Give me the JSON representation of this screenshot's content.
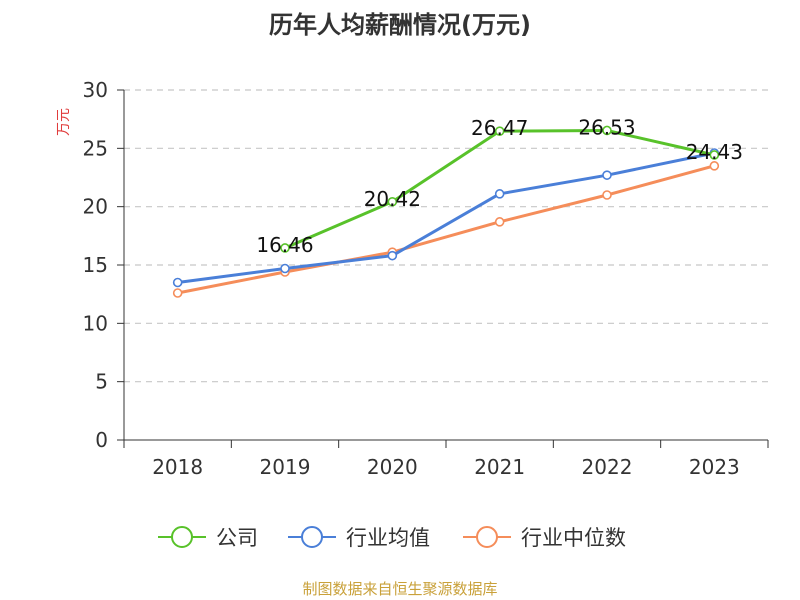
{
  "chart_data": {
    "type": "line",
    "title": "历年人均薪酬情况(万元)",
    "ylabel": "万元",
    "xlabel": "",
    "categories": [
      "2018",
      "2019",
      "2020",
      "2021",
      "2022",
      "2023"
    ],
    "ylim": [
      0,
      30
    ],
    "yticks": [
      0,
      5,
      10,
      15,
      20,
      25,
      30
    ],
    "grid": "horizontal-dashed",
    "legend_position": "bottom",
    "series": [
      {
        "name": "公司",
        "color": "#58c22a",
        "values": [
          null,
          16.46,
          20.42,
          26.47,
          26.53,
          24.43
        ],
        "labels": [
          "",
          "16.46",
          "20.42",
          "26.47",
          "26.53",
          "24.43"
        ]
      },
      {
        "name": "行业均值",
        "color": "#4a7fd8",
        "values": [
          13.5,
          14.7,
          15.8,
          21.1,
          22.7,
          24.6
        ],
        "labels": [
          "",
          "",
          "",
          "",
          "",
          ""
        ]
      },
      {
        "name": "行业中位数",
        "color": "#f58d5a",
        "values": [
          12.6,
          14.4,
          16.1,
          18.7,
          21.0,
          23.5
        ],
        "labels": [
          "",
          "",
          "",
          "",
          "",
          ""
        ]
      }
    ]
  },
  "colors": {
    "ylabel": "#e03c3c",
    "source": "#c9a13a",
    "axis": "#333333",
    "grid": "#c8c8c8"
  },
  "source_text": "制图数据来自恒生聚源数据库"
}
